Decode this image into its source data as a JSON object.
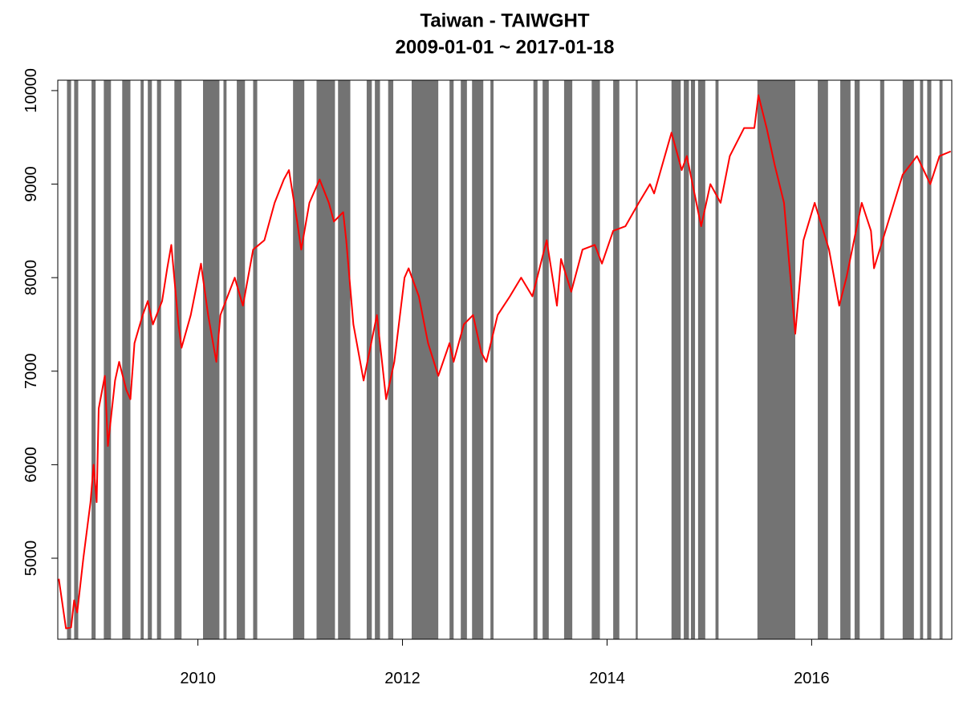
{
  "chart_data": {
    "type": "line",
    "title": "Taiwan - TAIWGHT",
    "subtitle": "2009-01-01 ~ 2017-01-18",
    "xlim": [
      2008.63,
      2017.37
    ],
    "ylim": [
      4134,
      10111
    ],
    "xticks": [
      2010,
      2012,
      2014,
      2016
    ],
    "yticks": [
      5000,
      6000,
      7000,
      8000,
      9000,
      10000
    ],
    "shade_color": "#737373",
    "shaded_periods": [
      [
        2008.72,
        2008.76
      ],
      [
        2008.79,
        2008.83
      ],
      [
        2008.96,
        2009.0
      ],
      [
        2009.08,
        2009.15
      ],
      [
        2009.26,
        2009.34
      ],
      [
        2009.44,
        2009.47
      ],
      [
        2009.51,
        2009.55
      ],
      [
        2009.6,
        2009.64
      ],
      [
        2009.77,
        2009.84
      ],
      [
        2010.05,
        2010.21
      ],
      [
        2010.25,
        2010.28
      ],
      [
        2010.38,
        2010.46
      ],
      [
        2010.54,
        2010.58
      ],
      [
        2010.93,
        2011.04
      ],
      [
        2011.16,
        2011.34
      ],
      [
        2011.37,
        2011.49
      ],
      [
        2011.65,
        2011.7
      ],
      [
        2011.73,
        2011.78
      ],
      [
        2011.86,
        2011.91
      ],
      [
        2012.09,
        2012.35
      ],
      [
        2012.46,
        2012.5
      ],
      [
        2012.57,
        2012.63
      ],
      [
        2012.68,
        2012.79
      ],
      [
        2012.86,
        2012.89
      ],
      [
        2013.28,
        2013.32
      ],
      [
        2013.37,
        2013.43
      ],
      [
        2013.58,
        2013.66
      ],
      [
        2013.85,
        2013.93
      ],
      [
        2014.06,
        2014.12
      ],
      [
        2014.28,
        2014.3
      ],
      [
        2014.63,
        2014.72
      ],
      [
        2014.75,
        2014.8
      ],
      [
        2014.82,
        2014.86
      ],
      [
        2014.89,
        2014.96
      ],
      [
        2015.06,
        2015.09
      ],
      [
        2015.47,
        2015.84
      ],
      [
        2016.06,
        2016.16
      ],
      [
        2016.28,
        2016.38
      ],
      [
        2016.42,
        2016.47
      ],
      [
        2016.67,
        2016.71
      ],
      [
        2016.89,
        2017.0
      ],
      [
        2017.06,
        2017.09
      ],
      [
        2017.13,
        2017.17
      ],
      [
        2017.25,
        2017.28
      ]
    ],
    "x": [
      2008.64,
      2008.71,
      2008.76,
      2008.79,
      2008.82,
      2008.88,
      2008.95,
      2008.98,
      2009.01,
      2009.03,
      2009.09,
      2009.12,
      2009.19,
      2009.23,
      2009.3,
      2009.34,
      2009.38,
      2009.46,
      2009.51,
      2009.56,
      2009.65,
      2009.7,
      2009.74,
      2009.81,
      2009.84,
      2009.93,
      2010.03,
      2010.1,
      2010.18,
      2010.22,
      2010.36,
      2010.44,
      2010.54,
      2010.65,
      2010.75,
      2010.84,
      2010.89,
      2010.97,
      2011.01,
      2011.09,
      2011.19,
      2011.28,
      2011.33,
      2011.42,
      2011.45,
      2011.52,
      2011.62,
      2011.75,
      2011.84,
      2011.92,
      2012.02,
      2012.06,
      2012.16,
      2012.25,
      2012.35,
      2012.46,
      2012.5,
      2012.6,
      2012.69,
      2012.77,
      2012.82,
      2012.93,
      2013.05,
      2013.16,
      2013.27,
      2013.41,
      2013.51,
      2013.55,
      2013.65,
      2013.76,
      2013.88,
      2013.95,
      2014.06,
      2014.18,
      2014.31,
      2014.42,
      2014.46,
      2014.63,
      2014.73,
      2014.78,
      2014.92,
      2015.01,
      2015.11,
      2015.2,
      2015.34,
      2015.44,
      2015.48,
      2015.56,
      2015.64,
      2015.73,
      2015.84,
      2015.92,
      2016.03,
      2016.17,
      2016.27,
      2016.34,
      2016.49,
      2016.58,
      2016.61,
      2016.75,
      2016.89,
      2017.03,
      2017.16,
      2017.25,
      2017.36
    ],
    "series": [
      {
        "color": "#ff0000",
        "values": [
          4780,
          4250,
          4260,
          4550,
          4420,
          5000,
          5600,
          6000,
          5600,
          6600,
          6950,
          6200,
          6900,
          7100,
          6800,
          6700,
          7300,
          7600,
          7750,
          7500,
          7750,
          8100,
          8350,
          7500,
          7250,
          7600,
          8150,
          7600,
          7100,
          7600,
          8000,
          7700,
          8300,
          8400,
          8800,
          9050,
          9150,
          8600,
          8300,
          8800,
          9050,
          8800,
          8600,
          8700,
          8400,
          7500,
          6900,
          7600,
          6700,
          7100,
          8000,
          8100,
          7800,
          7300,
          6950,
          7300,
          7100,
          7500,
          7600,
          7200,
          7100,
          7600,
          7800,
          8000,
          7800,
          8400,
          7700,
          8200,
          7850,
          8300,
          8350,
          8150,
          8500,
          8550,
          8800,
          9000,
          8900,
          9550,
          9150,
          9300,
          8550,
          9000,
          8800,
          9300,
          9600,
          9600,
          9950,
          9600,
          9200,
          8800,
          7400,
          8400,
          8800,
          8300,
          7700,
          8000,
          8800,
          8500,
          8100,
          8600,
          9100,
          9300,
          9000,
          9300,
          9350
        ]
      }
    ]
  }
}
